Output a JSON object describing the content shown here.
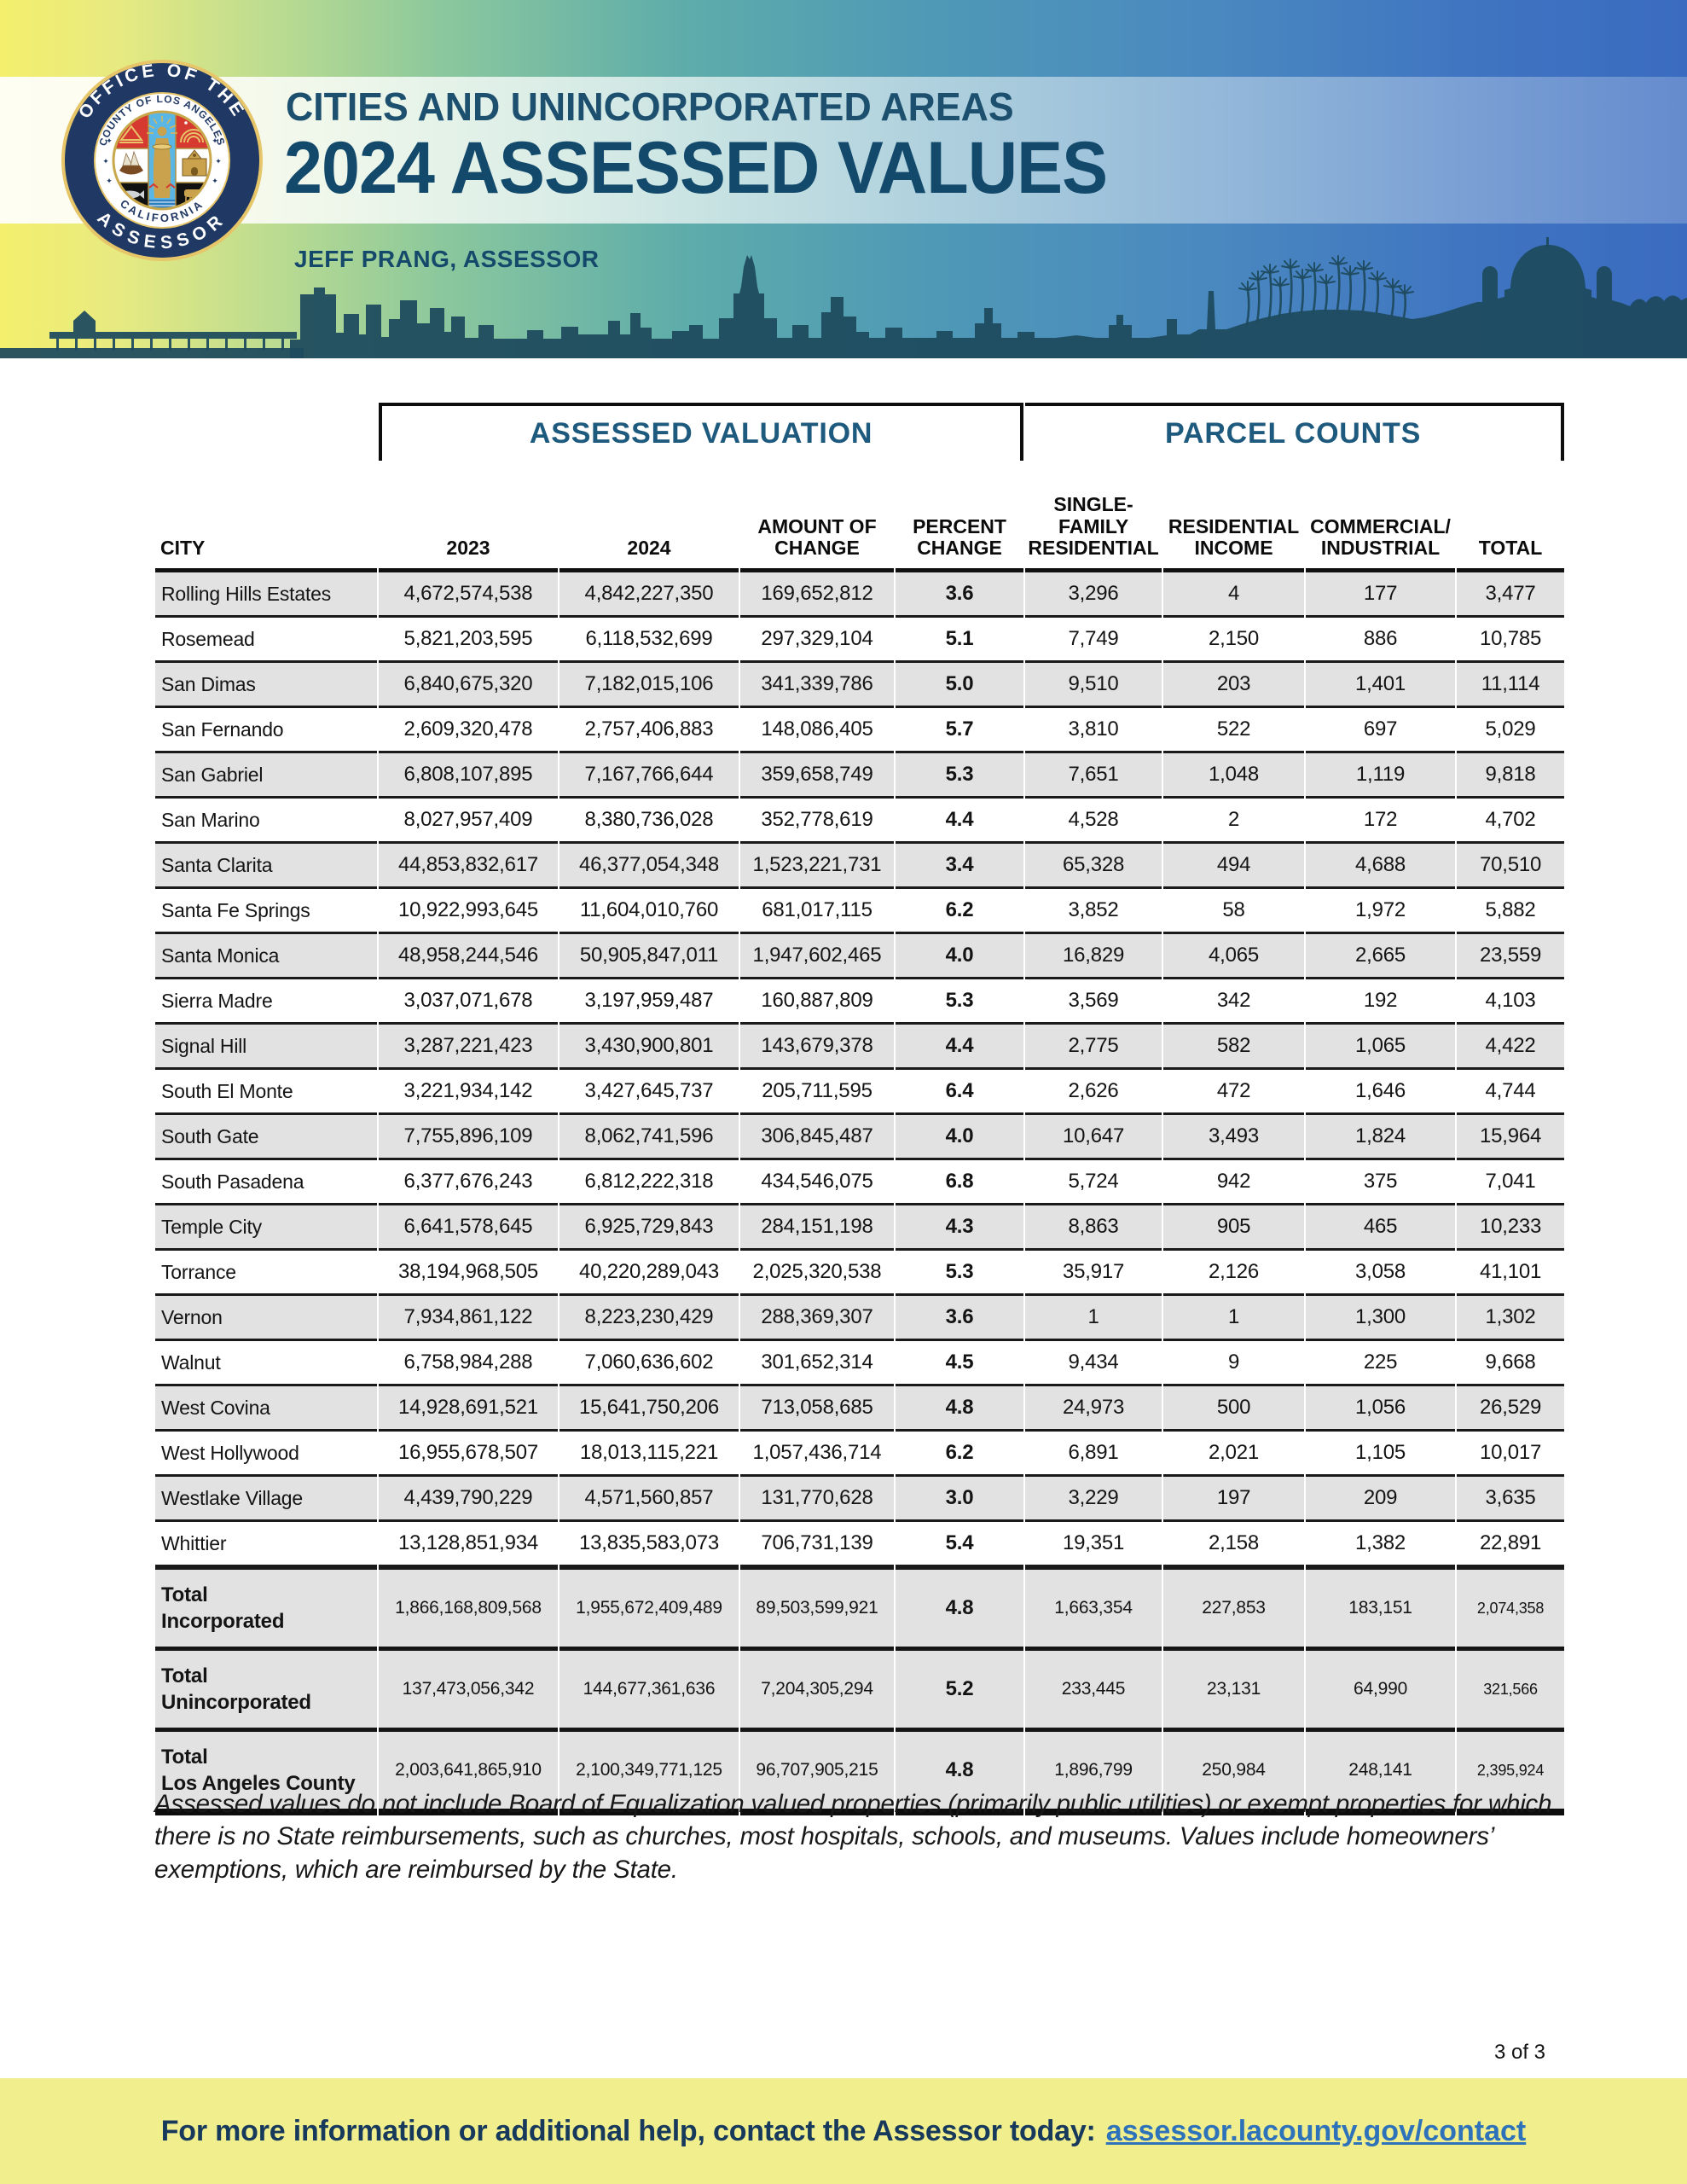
{
  "header": {
    "title_line1": "CITIES AND UNINCORPORATED AREAS",
    "title_line2": "2024 ASSESSED VALUES",
    "subtitle": "JEFF PRANG, ASSESSOR",
    "seal": {
      "ring_top": "OFFICE OF THE",
      "ring_bottom": "ASSESSOR",
      "inner_ring_top": "COUNTY OF LOS ANGELES",
      "inner_ring_bottom": "CALIFORNIA"
    }
  },
  "colors": {
    "title_color": "#134a6c",
    "group_header_color": "#1d5a7d",
    "row_alt_gray": "#e2e2e2",
    "rule_black": "#1a1a1a",
    "footer_bg": "#f1ee8e",
    "footer_text": "#17395c",
    "footer_link": "#2e73ba",
    "skyline": "#1e4a5e",
    "gradient_left_yellow": "#f4ef6c",
    "gradient_right_blue": "#3a6bc0"
  },
  "table": {
    "group_headers": [
      {
        "label": "ASSESSED VALUATION"
      },
      {
        "label": "PARCEL COUNTS"
      }
    ],
    "columns": [
      "CITY",
      "2023",
      "2024",
      "AMOUNT OF\nCHANGE",
      "PERCENT\nCHANGE",
      "SINGLE-\nFAMILY\nRESIDENTIAL",
      "RESIDENTIAL\nINCOME",
      "COMMERCIAL/\nINDUSTRIAL",
      "TOTAL"
    ],
    "rows": [
      [
        "Rolling Hills Estates",
        "4,672,574,538",
        "4,842,227,350",
        "169,652,812",
        "3.6",
        "3,296",
        "4",
        "177",
        "3,477"
      ],
      [
        "Rosemead",
        "5,821,203,595",
        "6,118,532,699",
        "297,329,104",
        "5.1",
        "7,749",
        "2,150",
        "886",
        "10,785"
      ],
      [
        "San Dimas",
        "6,840,675,320",
        "7,182,015,106",
        "341,339,786",
        "5.0",
        "9,510",
        "203",
        "1,401",
        "11,114"
      ],
      [
        "San Fernando",
        "2,609,320,478",
        "2,757,406,883",
        "148,086,405",
        "5.7",
        "3,810",
        "522",
        "697",
        "5,029"
      ],
      [
        "San Gabriel",
        "6,808,107,895",
        "7,167,766,644",
        "359,658,749",
        "5.3",
        "7,651",
        "1,048",
        "1,119",
        "9,818"
      ],
      [
        "San Marino",
        "8,027,957,409",
        "8,380,736,028",
        "352,778,619",
        "4.4",
        "4,528",
        "2",
        "172",
        "4,702"
      ],
      [
        "Santa Clarita",
        "44,853,832,617",
        "46,377,054,348",
        "1,523,221,731",
        "3.4",
        "65,328",
        "494",
        "4,688",
        "70,510"
      ],
      [
        "Santa Fe Springs",
        "10,922,993,645",
        "11,604,010,760",
        "681,017,115",
        "6.2",
        "3,852",
        "58",
        "1,972",
        "5,882"
      ],
      [
        "Santa Monica",
        "48,958,244,546",
        "50,905,847,011",
        "1,947,602,465",
        "4.0",
        "16,829",
        "4,065",
        "2,665",
        "23,559"
      ],
      [
        "Sierra Madre",
        "3,037,071,678",
        "3,197,959,487",
        "160,887,809",
        "5.3",
        "3,569",
        "342",
        "192",
        "4,103"
      ],
      [
        "Signal Hill",
        "3,287,221,423",
        "3,430,900,801",
        "143,679,378",
        "4.4",
        "2,775",
        "582",
        "1,065",
        "4,422"
      ],
      [
        "South El Monte",
        "3,221,934,142",
        "3,427,645,737",
        "205,711,595",
        "6.4",
        "2,626",
        "472",
        "1,646",
        "4,744"
      ],
      [
        "South Gate",
        "7,755,896,109",
        "8,062,741,596",
        "306,845,487",
        "4.0",
        "10,647",
        "3,493",
        "1,824",
        "15,964"
      ],
      [
        "South Pasadena",
        "6,377,676,243",
        "6,812,222,318",
        "434,546,075",
        "6.8",
        "5,724",
        "942",
        "375",
        "7,041"
      ],
      [
        "Temple City",
        "6,641,578,645",
        "6,925,729,843",
        "284,151,198",
        "4.3",
        "8,863",
        "905",
        "465",
        "10,233"
      ],
      [
        "Torrance",
        "38,194,968,505",
        "40,220,289,043",
        "2,025,320,538",
        "5.3",
        "35,917",
        "2,126",
        "3,058",
        "41,101"
      ],
      [
        "Vernon",
        "7,934,861,122",
        "8,223,230,429",
        "288,369,307",
        "3.6",
        "1",
        "1",
        "1,300",
        "1,302"
      ],
      [
        "Walnut",
        "6,758,984,288",
        "7,060,636,602",
        "301,652,314",
        "4.5",
        "9,434",
        "9",
        "225",
        "9,668"
      ],
      [
        "West Covina",
        "14,928,691,521",
        "15,641,750,206",
        "713,058,685",
        "4.8",
        "24,973",
        "500",
        "1,056",
        "26,529"
      ],
      [
        "West Hollywood",
        "16,955,678,507",
        "18,013,115,221",
        "1,057,436,714",
        "6.2",
        "6,891",
        "2,021",
        "1,105",
        "10,017"
      ],
      [
        "Westlake Village",
        "4,439,790,229",
        "4,571,560,857",
        "131,770,628",
        "3.0",
        "3,229",
        "197",
        "209",
        "3,635"
      ],
      [
        "Whittier",
        "13,128,851,934",
        "13,835,583,073",
        "706,731,139",
        "5.4",
        "19,351",
        "2,158",
        "1,382",
        "22,891"
      ]
    ],
    "total_rows": [
      [
        "Total\nIncorporated",
        "1,866,168,809,568",
        "1,955,672,409,489",
        "89,503,599,921",
        "4.8",
        "1,663,354",
        "227,853",
        "183,151",
        "2,074,358"
      ],
      [
        "Total\nUnincorporated",
        "137,473,056,342",
        "144,677,361,636",
        "7,204,305,294",
        "5.2",
        "233,445",
        "23,131",
        "64,990",
        "321,566"
      ],
      [
        "Total\nLos Angeles County",
        "2,003,641,865,910",
        "2,100,349,771,125",
        "96,707,905,215",
        "4.8",
        "1,896,799",
        "250,984",
        "248,141",
        "2,395,924"
      ]
    ]
  },
  "footnote": "Assessed values do not include Board of Equalization valued properties (primarily public utilities) or exempt properties for which there is no State reimbursements, such as churches, most hospitals, schools, and museums. Values include homeowners’ exemptions, which are reimbursed by the State.",
  "page_indicator": "3 of 3",
  "footer": {
    "text": "For more information or additional help, contact the Assessor today:",
    "link": "assessor.lacounty.gov/contact"
  }
}
